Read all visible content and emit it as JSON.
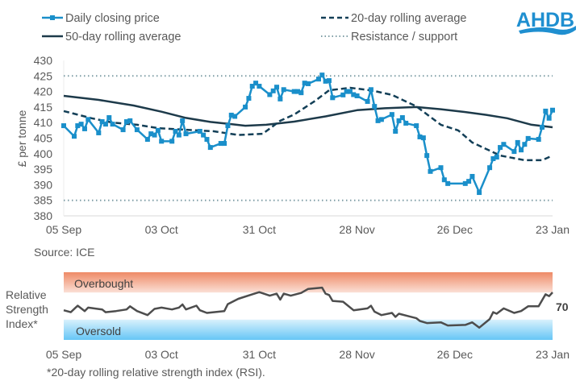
{
  "logo": {
    "text": "AHDB",
    "color": "#1f8fd0"
  },
  "legend": {
    "position": "top",
    "items": [
      {
        "label": "Daily closing price",
        "style": "line-square-markers",
        "color": "#1a8fca"
      },
      {
        "label": "20-day rolling average",
        "style": "dashed",
        "color": "#133f57"
      },
      {
        "label": "50-day rolling average",
        "style": "solid",
        "color": "#1d3a4a"
      },
      {
        "label": "Resistance / support",
        "style": "dotted",
        "color": "#7f9ea6"
      }
    ]
  },
  "source": "Source: ICE",
  "footnote": "*20-day rolling relative strength index (RSI).",
  "chart_data": [
    {
      "type": "line",
      "ylabel": "£ per tonne",
      "ylim": [
        380,
        430
      ],
      "yticks": [
        "430",
        "425",
        "420",
        "415",
        "410",
        "405",
        "400",
        "395",
        "390",
        "385",
        "380"
      ],
      "xlim": [
        "05 Sep",
        "23 Jan"
      ],
      "xticks": [
        "05 Sep",
        "03 Oct",
        "31 Oct",
        "28 Nov",
        "26 Dec",
        "23 Jan"
      ],
      "grid": false,
      "reference_lines": [
        {
          "label": "Resistance / support",
          "values": [
            425,
            385
          ]
        }
      ],
      "series": [
        {
          "name": "Daily closing price",
          "points": [
            [
              "05 Sep",
              409
            ],
            [
              "08 Sep",
              405.6
            ],
            [
              "09 Sep",
              409
            ],
            [
              "10 Sep",
              409.5
            ],
            [
              "11 Sep",
              408
            ],
            [
              "12 Sep",
              411
            ],
            [
              "15 Sep",
              406.7
            ],
            [
              "16 Sep",
              410.3
            ],
            [
              "17 Sep",
              409.5
            ],
            [
              "18 Sep",
              411.6
            ],
            [
              "19 Sep",
              409.5
            ],
            [
              "22 Sep",
              407.7
            ],
            [
              "23 Sep",
              410.3
            ],
            [
              "24 Sep",
              410.6
            ],
            [
              "26 Sep",
              407.7
            ],
            [
              "29 Sep",
              404.6
            ],
            [
              "30 Sep",
              406.4
            ],
            [
              "01 Oct",
              406
            ],
            [
              "02 Oct",
              407.5
            ],
            [
              "03 Oct",
              404
            ],
            [
              "06 Oct",
              404
            ],
            [
              "07 Oct",
              407.2
            ],
            [
              "08 Oct",
              406
            ],
            [
              "09 Oct",
              410.6
            ],
            [
              "10 Oct",
              406.4
            ],
            [
              "14 Oct",
              407.2
            ],
            [
              "15 Oct",
              406
            ],
            [
              "16 Oct",
              404.6
            ],
            [
              "17 Oct",
              402
            ],
            [
              "20 Oct",
              403.3
            ],
            [
              "21 Oct",
              403.3
            ],
            [
              "22 Oct",
              409
            ],
            [
              "23 Oct",
              412.4
            ],
            [
              "24 Oct",
              412
            ],
            [
              "27 Oct",
              415
            ],
            [
              "28 Oct",
              417.8
            ],
            [
              "29 Oct",
              421.7
            ],
            [
              "30 Oct",
              422.7
            ],
            [
              "31 Oct",
              421.7
            ],
            [
              "03 Nov",
              419
            ],
            [
              "04 Nov",
              420.2
            ],
            [
              "05 Nov",
              421.4
            ],
            [
              "06 Nov",
              417.6
            ],
            [
              "07 Nov",
              420.6
            ],
            [
              "10 Nov",
              420
            ],
            [
              "11 Nov",
              420
            ],
            [
              "12 Nov",
              419.6
            ],
            [
              "13 Nov",
              422.7
            ],
            [
              "14 Nov",
              422.5
            ],
            [
              "17 Nov",
              424
            ],
            [
              "18 Nov",
              425.3
            ],
            [
              "19 Nov",
              423.3
            ],
            [
              "20 Nov",
              423.5
            ],
            [
              "21 Nov",
              418
            ],
            [
              "24 Nov",
              418.9
            ],
            [
              "25 Nov",
              420
            ],
            [
              "26 Nov",
              420
            ],
            [
              "27 Nov",
              419
            ],
            [
              "28 Nov",
              418.6
            ],
            [
              "01 Dec",
              416.8
            ],
            [
              "02 Dec",
              420.6
            ],
            [
              "03 Dec",
              415.2
            ],
            [
              "04 Dec",
              410.6
            ],
            [
              "05 Dec",
              411
            ],
            [
              "08 Dec",
              412.6
            ],
            [
              "09 Dec",
              407.2
            ],
            [
              "10 Dec",
              410.6
            ],
            [
              "11 Dec",
              411.6
            ],
            [
              "12 Dec",
              409.8
            ],
            [
              "15 Dec",
              409
            ],
            [
              "16 Dec",
              405.4
            ],
            [
              "17 Dec",
              405.1
            ],
            [
              "18 Dec",
              399.4
            ],
            [
              "19 Dec",
              394.3
            ],
            [
              "22 Dec",
              395.5
            ],
            [
              "23 Dec",
              391.6
            ],
            [
              "24 Dec",
              390.4
            ],
            [
              "29 Dec",
              390.4
            ],
            [
              "30 Dec",
              391.1
            ],
            [
              "31 Dec",
              392.7
            ],
            [
              "02 Jan",
              387.5
            ],
            [
              "05 Jan",
              395.5
            ],
            [
              "06 Jan",
              398.4
            ],
            [
              "07 Jan",
              398.9
            ],
            [
              "08 Jan",
              402
            ],
            [
              "09 Jan",
              403
            ],
            [
              "12 Jan",
              400.7
            ],
            [
              "13 Jan",
              403.6
            ],
            [
              "14 Jan",
              401.2
            ],
            [
              "15 Jan",
              403
            ],
            [
              "16 Jan",
              404.9
            ],
            [
              "19 Jan",
              404.6
            ],
            [
              "20 Jan",
              408.5
            ],
            [
              "21 Jan",
              413.7
            ],
            [
              "22 Jan",
              411.4
            ],
            [
              "23 Jan",
              414
            ]
          ]
        },
        {
          "name": "20-day rolling average",
          "points": [
            [
              "05 Sep",
              413.7
            ],
            [
              "13 Sep",
              411.4
            ],
            [
              "19 Sep",
              410
            ],
            [
              "26 Sep",
              409.3
            ],
            [
              "02 Oct",
              408.2
            ],
            [
              "10 Oct",
              407.7
            ],
            [
              "18 Oct",
              407.2
            ],
            [
              "25 Oct",
              406
            ],
            [
              "01 Nov",
              406.4
            ],
            [
              "06 Nov",
              410.6
            ],
            [
              "10 Nov",
              412.6
            ],
            [
              "16 Nov",
              417
            ],
            [
              "20 Nov",
              420.4
            ],
            [
              "26 Nov",
              421.2
            ],
            [
              "02 Dec",
              420.4
            ],
            [
              "08 Dec",
              418.9
            ],
            [
              "15 Dec",
              415.2
            ],
            [
              "22 Dec",
              409.3
            ],
            [
              "27 Dec",
              407.5
            ],
            [
              "31 Dec",
              403.6
            ],
            [
              "08 Jan",
              399.4
            ],
            [
              "15 Jan",
              397.9
            ],
            [
              "20 Jan",
              397.9
            ],
            [
              "23 Jan",
              399.4
            ]
          ]
        },
        {
          "name": "50-day rolling average",
          "points": [
            [
              "05 Sep",
              418.6
            ],
            [
              "15 Sep",
              417.3
            ],
            [
              "25 Sep",
              415.5
            ],
            [
              "03 Oct",
              413.5
            ],
            [
              "10 Oct",
              411.5
            ],
            [
              "17 Oct",
              410.2
            ],
            [
              "23 Oct",
              409.5
            ],
            [
              "27 Oct",
              409
            ],
            [
              "02 Nov",
              409.3
            ],
            [
              "10 Nov",
              410.3
            ],
            [
              "19 Nov",
              412
            ],
            [
              "28 Nov",
              414
            ],
            [
              "06 Dec",
              414.6
            ],
            [
              "15 Dec",
              415
            ],
            [
              "22 Dec",
              414.3
            ],
            [
              "29 Dec",
              413.4
            ],
            [
              "04 Jan",
              412.5
            ],
            [
              "10 Jan",
              411.4
            ],
            [
              "17 Jan",
              409.3
            ],
            [
              "23 Jan",
              408.5
            ]
          ]
        }
      ]
    },
    {
      "type": "line",
      "ylabel": "Relative Strength Index*",
      "ylim": [
        0,
        100
      ],
      "xticks": [
        "05 Sep",
        "03 Oct",
        "31 Oct",
        "28 Nov",
        "26 Dec",
        "23 Jan"
      ],
      "bands": [
        {
          "label": "Overbought",
          "range": [
            70,
            100
          ],
          "color": "#f08c6c"
        },
        {
          "label": "Oversold",
          "range": [
            0,
            30
          ],
          "color": "#6cc8f5"
        }
      ],
      "last_value_label": "70",
      "series": [
        {
          "name": "RSI",
          "points": [
            [
              "05 Sep",
              43.8
            ],
            [
              "07 Sep",
              41
            ],
            [
              "09 Sep",
              50.6
            ],
            [
              "11 Sep",
              42.6
            ],
            [
              "12 Sep",
              47.7
            ],
            [
              "16 Sep",
              45
            ],
            [
              "17 Sep",
              41
            ],
            [
              "20 Sep",
              42.6
            ],
            [
              "23 Sep",
              45
            ],
            [
              "24 Sep",
              49.7
            ],
            [
              "26 Sep",
              42.6
            ],
            [
              "29 Sep",
              36.7
            ],
            [
              "01 Oct",
              45.8
            ],
            [
              "03 Oct",
              47.7
            ],
            [
              "06 Oct",
              45
            ],
            [
              "08 Oct",
              47.7
            ],
            [
              "09 Oct",
              52.4
            ],
            [
              "10 Oct",
              45
            ],
            [
              "13 Oct",
              50.6
            ],
            [
              "14 Oct",
              43.8
            ],
            [
              "16 Oct",
              39.9
            ],
            [
              "21 Oct",
              42.6
            ],
            [
              "22 Oct",
              52.9
            ],
            [
              "25 Oct",
              60.7
            ],
            [
              "29 Oct",
              67.4
            ],
            [
              "31 Oct",
              70.6
            ],
            [
              "03 Nov",
              65.4
            ],
            [
              "05 Nov",
              68.3
            ],
            [
              "06 Nov",
              59.5
            ],
            [
              "07 Nov",
              68.3
            ],
            [
              "09 Nov",
              65.4
            ],
            [
              "12 Nov",
              69.4
            ],
            [
              "14 Nov",
              75.4
            ],
            [
              "18 Nov",
              77.3
            ],
            [
              "19 Nov",
              68.3
            ],
            [
              "20 Nov",
              66.3
            ],
            [
              "21 Nov",
              57.6
            ],
            [
              "24 Nov",
              56.4
            ],
            [
              "27 Nov",
              43.8
            ],
            [
              "01 Dec",
              46.5
            ],
            [
              "02 Dec",
              50.5
            ],
            [
              "03 Dec",
              41.8
            ],
            [
              "05 Dec",
              36.7
            ],
            [
              "08 Dec",
              39.9
            ],
            [
              "09 Dec",
              34
            ],
            [
              "10 Dec",
              38.7
            ],
            [
              "15 Dec",
              32
            ],
            [
              "16 Dec",
              28
            ],
            [
              "18 Dec",
              24.9
            ],
            [
              "22 Dec",
              26
            ],
            [
              "24 Dec",
              21.3
            ],
            [
              "29 Dec",
              22.1
            ],
            [
              "31 Dec",
              26
            ],
            [
              "02 Jan",
              18.1
            ],
            [
              "05 Jan",
              30.8
            ],
            [
              "06 Jan",
              41
            ],
            [
              "07 Jan",
              38.7
            ],
            [
              "09 Jan",
              46.5
            ],
            [
              "12 Jan",
              39.9
            ],
            [
              "14 Jan",
              42.6
            ],
            [
              "16 Jan",
              49.7
            ],
            [
              "19 Jan",
              49.7
            ],
            [
              "21 Jan",
              67.4
            ],
            [
              "22 Jan",
              64.7
            ],
            [
              "23 Jan",
              70.2
            ]
          ]
        }
      ]
    }
  ]
}
